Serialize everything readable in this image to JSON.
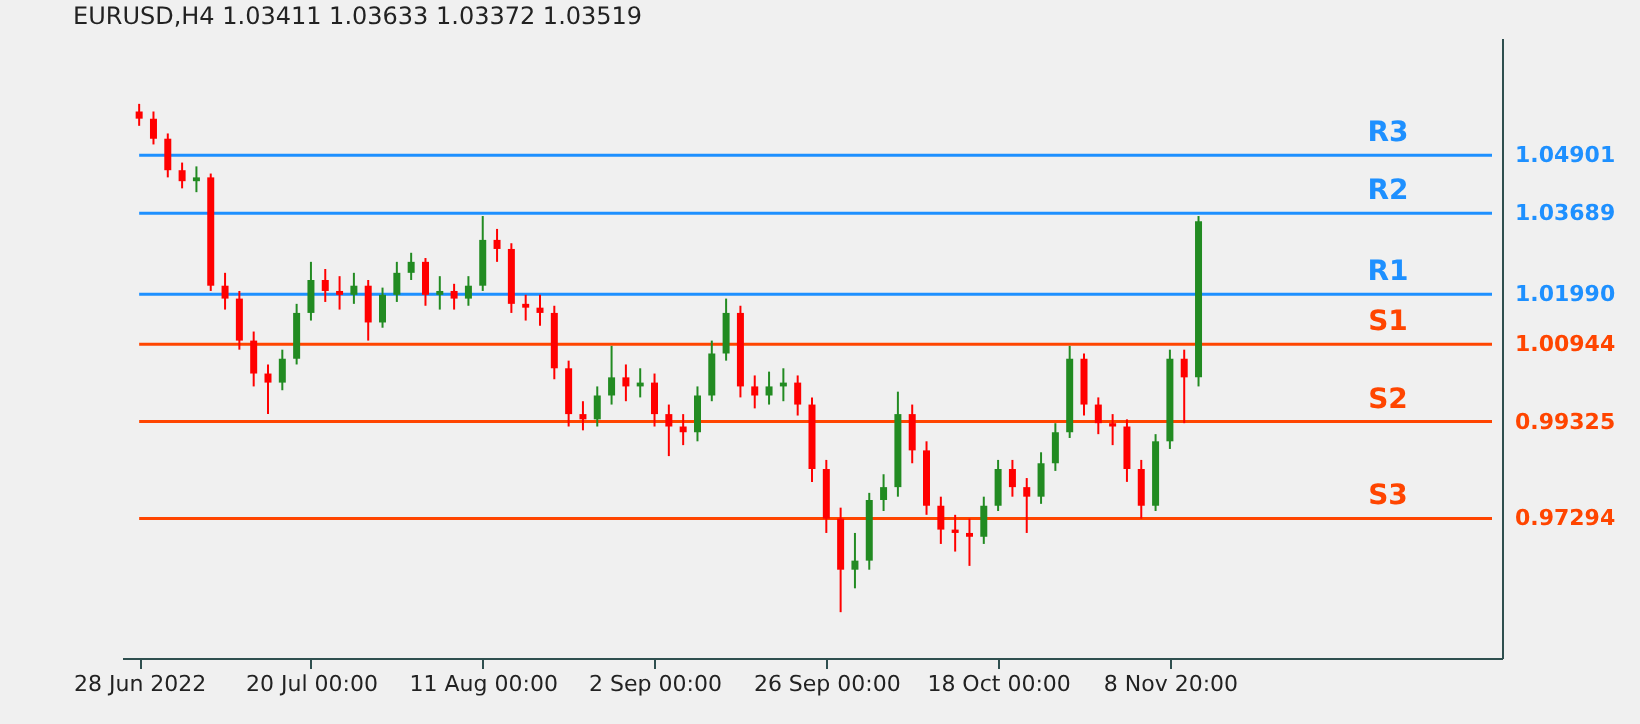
{
  "chart_data": {
    "type": "candlestick",
    "title": "EURUSD,H4 1.03411 1.03633 1.03372 1.03519",
    "categories": [
      "28 Jun 2022",
      null,
      null,
      null,
      null,
      null,
      null,
      null,
      null,
      null,
      null,
      null,
      "20 Jul 00:00",
      null,
      null,
      null,
      null,
      null,
      null,
      null,
      null,
      null,
      null,
      null,
      "11 Aug 00:00",
      null,
      null,
      null,
      null,
      null,
      null,
      null,
      null,
      null,
      null,
      null,
      "2 Sep 00:00",
      null,
      null,
      null,
      null,
      null,
      null,
      null,
      null,
      null,
      null,
      null,
      "26 Sep 00:00",
      null,
      null,
      null,
      null,
      null,
      null,
      null,
      null,
      null,
      null,
      null,
      "18 Oct 00:00",
      null,
      null,
      null,
      null,
      null,
      null,
      null,
      null,
      null,
      null,
      null,
      "8 Nov 20:00",
      null,
      null,
      null,
      null,
      null,
      null,
      null,
      null,
      null,
      null,
      null,
      null,
      null,
      null,
      null,
      null,
      null,
      null,
      null,
      null,
      null,
      null
    ],
    "ohlc": [
      [
        1.0582,
        1.0598,
        1.0552,
        1.0567
      ],
      [
        1.0567,
        1.0582,
        1.0513,
        1.0525
      ],
      [
        1.0525,
        1.0536,
        1.0444,
        1.0459
      ],
      [
        1.0459,
        1.0475,
        1.0421,
        1.0436
      ],
      [
        1.0436,
        1.0467,
        1.0413,
        1.0444
      ],
      [
        1.0444,
        1.0452,
        1.0206,
        1.0217
      ],
      [
        1.0217,
        1.0244,
        1.0167,
        1.019
      ],
      [
        1.019,
        1.0206,
        1.0083,
        1.0102
      ],
      [
        1.0102,
        1.0121,
        1.0006,
        1.0033
      ],
      [
        1.0033,
        1.0052,
        0.9948,
        1.0014
      ],
      [
        1.0014,
        1.0083,
        0.9998,
        1.0064
      ],
      [
        1.0064,
        1.0179,
        1.0052,
        1.016
      ],
      [
        1.016,
        1.0267,
        1.0144,
        1.0229
      ],
      [
        1.0229,
        1.0252,
        1.0183,
        1.0206
      ],
      [
        1.0206,
        1.0237,
        1.0167,
        1.0198
      ],
      [
        1.0198,
        1.0244,
        1.0179,
        1.0217
      ],
      [
        1.0217,
        1.0229,
        1.0102,
        1.014
      ],
      [
        1.014,
        1.0213,
        1.0129,
        1.0198
      ],
      [
        1.0198,
        1.0267,
        1.0183,
        1.0244
      ],
      [
        1.0244,
        1.0286,
        1.0229,
        1.0267
      ],
      [
        1.0267,
        1.0275,
        1.0175,
        1.0198
      ],
      [
        1.0198,
        1.0237,
        1.0167,
        1.0206
      ],
      [
        1.0206,
        1.0221,
        1.0167,
        1.019
      ],
      [
        1.019,
        1.0237,
        1.0175,
        1.0217
      ],
      [
        1.0217,
        1.0363,
        1.0206,
        1.0313
      ],
      [
        1.0313,
        1.0336,
        1.0267,
        1.0294
      ],
      [
        1.0294,
        1.0306,
        1.016,
        1.0179
      ],
      [
        1.0179,
        1.0198,
        1.0144,
        1.0171
      ],
      [
        1.0171,
        1.0198,
        1.0133,
        1.016
      ],
      [
        1.016,
        1.0175,
        1.0021,
        1.0044
      ],
      [
        1.0044,
        1.006,
        0.9922,
        0.9948
      ],
      [
        0.9948,
        0.9975,
        0.9914,
        0.9937
      ],
      [
        0.9937,
        1.0006,
        0.9922,
        0.9987
      ],
      [
        0.9987,
        1.0091,
        0.9968,
        1.0025
      ],
      [
        1.0025,
        1.0052,
        0.9975,
        1.0006
      ],
      [
        1.0006,
        1.0044,
        0.9983,
        1.0014
      ],
      [
        1.0014,
        1.0033,
        0.9922,
        0.9948
      ],
      [
        0.9948,
        0.9968,
        0.986,
        0.9922
      ],
      [
        0.9922,
        0.9948,
        0.9883,
        0.991
      ],
      [
        0.991,
        1.0006,
        0.9891,
        0.9987
      ],
      [
        0.9987,
        1.0102,
        0.9975,
        1.0075
      ],
      [
        1.0075,
        1.019,
        1.006,
        1.016
      ],
      [
        1.016,
        1.0175,
        0.9983,
        1.0006
      ],
      [
        1.0006,
        1.0029,
        0.996,
        0.9987
      ],
      [
        0.9987,
        1.0037,
        0.9968,
        1.0006
      ],
      [
        1.0006,
        1.0044,
        0.9975,
        1.0014
      ],
      [
        1.0014,
        1.0029,
        0.9945,
        0.9968
      ],
      [
        0.9968,
        0.9983,
        0.9806,
        0.9833
      ],
      [
        0.9833,
        0.9852,
        0.9699,
        0.9729
      ],
      [
        0.9729,
        0.9752,
        0.9533,
        0.9622
      ],
      [
        0.9622,
        0.9699,
        0.9583,
        0.9641
      ],
      [
        0.9641,
        0.9783,
        0.9622,
        0.9768
      ],
      [
        0.9768,
        0.9822,
        0.9745,
        0.9795
      ],
      [
        0.9795,
        0.9995,
        0.9775,
        0.9948
      ],
      [
        0.9948,
        0.9968,
        0.9845,
        0.9872
      ],
      [
        0.9872,
        0.9891,
        0.9737,
        0.9756
      ],
      [
        0.9756,
        0.9775,
        0.9676,
        0.9706
      ],
      [
        0.9706,
        0.9737,
        0.966,
        0.9699
      ],
      [
        0.9699,
        0.9729,
        0.963,
        0.9691
      ],
      [
        0.9691,
        0.9775,
        0.9676,
        0.9756
      ],
      [
        0.9756,
        0.9852,
        0.9745,
        0.9833
      ],
      [
        0.9833,
        0.9852,
        0.9775,
        0.9795
      ],
      [
        0.9795,
        0.9814,
        0.9699,
        0.9775
      ],
      [
        0.9775,
        0.9868,
        0.976,
        0.9845
      ],
      [
        0.9845,
        0.9929,
        0.9829,
        0.991
      ],
      [
        0.991,
        1.0091,
        0.9898,
        1.0064
      ],
      [
        1.0064,
        1.0075,
        0.9945,
        0.9968
      ],
      [
        0.9968,
        0.9983,
        0.9906,
        0.9929
      ],
      [
        0.9929,
        0.9948,
        0.9883,
        0.9922
      ],
      [
        0.9922,
        0.9937,
        0.9806,
        0.9833
      ],
      [
        0.9833,
        0.9852,
        0.9729,
        0.9756
      ],
      [
        0.9756,
        0.9906,
        0.9745,
        0.9891
      ],
      [
        0.9891,
        1.0083,
        0.9875,
        1.0064
      ],
      [
        1.0064,
        1.0083,
        0.9929,
        1.0025
      ],
      [
        1.0025,
        1.0363,
        1.0006,
        1.0352
      ],
      null,
      null,
      null,
      null,
      null,
      null,
      null,
      null,
      null,
      null,
      null,
      null,
      null,
      null,
      null,
      null,
      null,
      null,
      null,
      null
    ],
    "ylim": [
      0.9437,
      1.0736
    ],
    "yticks": [
      {
        "value": 1.04901,
        "label": "1.04901"
      },
      {
        "value": 1.03689,
        "label": "1.03689"
      },
      {
        "value": 1.0199,
        "label": "1.01990"
      },
      {
        "value": 1.00944,
        "label": "1.00944"
      },
      {
        "value": 0.99325,
        "label": "0.99325"
      },
      {
        "value": 0.97294,
        "label": "0.97294"
      }
    ],
    "ref_lines": [
      {
        "axis": "y",
        "value": 1.04901,
        "label": "R3",
        "color": "#1e90ff"
      },
      {
        "axis": "y",
        "value": 1.03689,
        "label": "R2",
        "color": "#1e90ff"
      },
      {
        "axis": "y",
        "value": 1.0199,
        "label": "R1",
        "color": "#1e90ff"
      },
      {
        "axis": "y",
        "value": 1.00944,
        "label": "S1",
        "color": "#ff4500"
      },
      {
        "axis": "y",
        "value": 0.99325,
        "label": "S2",
        "color": "#ff4500"
      },
      {
        "axis": "y",
        "value": 0.97294,
        "label": "S3",
        "color": "#ff4500"
      }
    ]
  }
}
